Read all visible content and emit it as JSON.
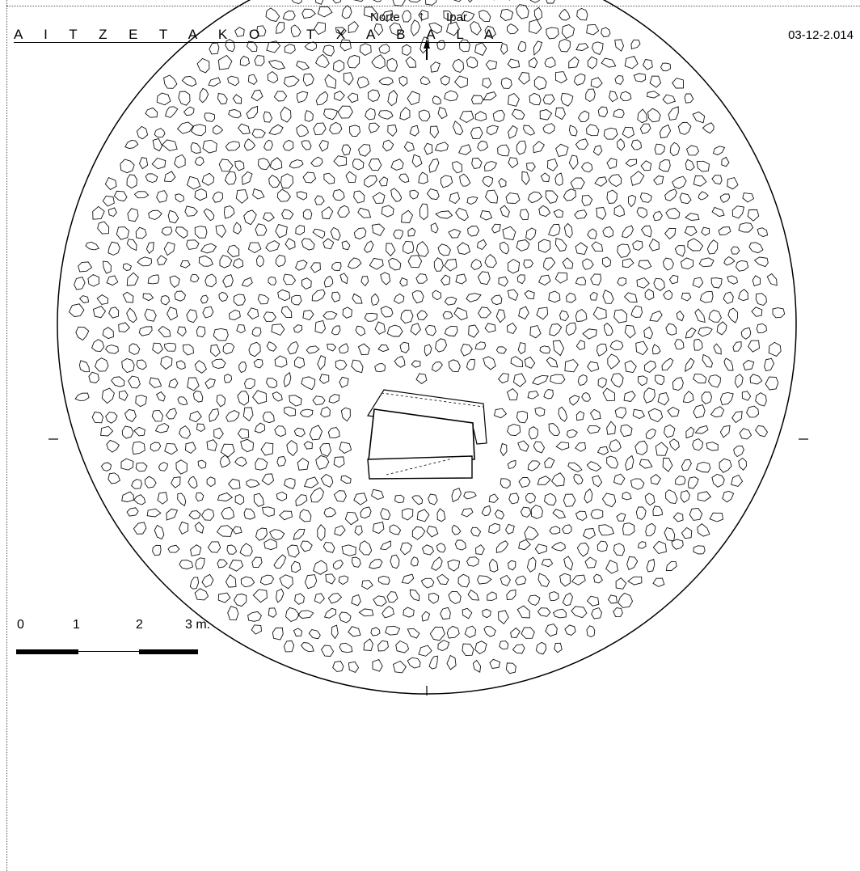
{
  "header": {
    "title": "A I T Z E T A K O   T X A B A L A",
    "date": "03-12-2.014",
    "north_left": "Norte",
    "north_arrow": "↑",
    "north_right": "Ipar"
  },
  "scale": {
    "labels": [
      "0",
      "1",
      "2",
      "3 m."
    ],
    "segments": [
      "filled",
      "open",
      "filled"
    ]
  },
  "colors": {
    "ink": "#000000",
    "paper": "#ffffff"
  }
}
